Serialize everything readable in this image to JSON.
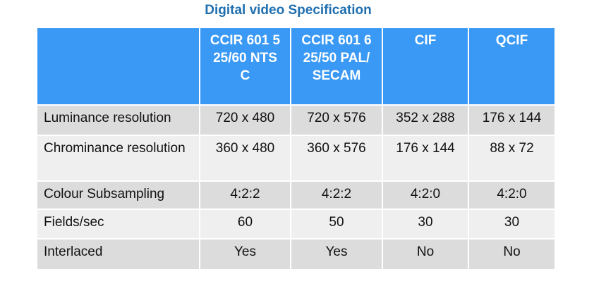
{
  "title": "Digital video Specification",
  "table": {
    "headers": [
      "",
      "CCIR 601 525/60 NTSC",
      "CCIR 601 625/50 PAL/SECAM",
      "CIF",
      "QCIF"
    ],
    "rows": [
      {
        "label": "Luminance resolution",
        "values": [
          "720 x 480",
          "720 x 576",
          "352 x 288",
          "176 x 144"
        ]
      },
      {
        "label": "Chrominance resolution",
        "values": [
          "360 x 480",
          "360 x 576",
          "176 x 144",
          "88 x 72"
        ]
      },
      {
        "label": "Colour Subsampling",
        "values": [
          "4:2:2",
          "4:2:2",
          "4:2:0",
          "4:2:0"
        ]
      },
      {
        "label": "Fields/sec",
        "values": [
          "60",
          "50",
          "30",
          "30"
        ]
      },
      {
        "label": "Interlaced",
        "values": [
          "Yes",
          "Yes",
          "No",
          "No"
        ]
      }
    ]
  },
  "colors": {
    "title": "#1f6fb0",
    "header_bg": "#3a99f5",
    "row_dark": "#dcdcdc",
    "row_light": "#efefef"
  }
}
